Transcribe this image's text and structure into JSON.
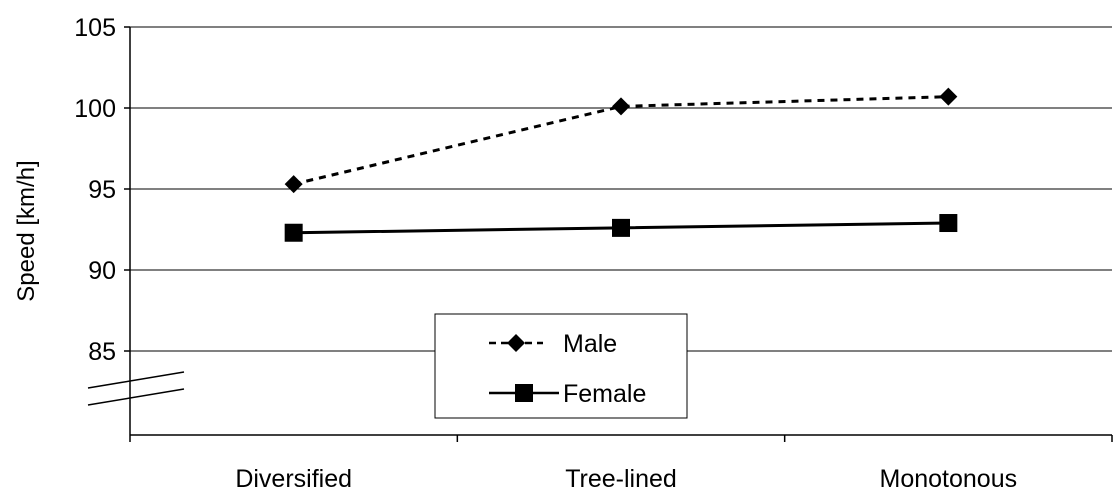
{
  "chart_data": {
    "type": "line",
    "categories": [
      "Diversified",
      "Tree-lined",
      "Monotonous"
    ],
    "series": [
      {
        "name": "Male",
        "values": [
          95.3,
          100.1,
          100.7
        ],
        "line_style": "dashed",
        "marker": "diamond",
        "color": "#000000"
      },
      {
        "name": "Female",
        "values": [
          92.3,
          92.6,
          92.9
        ],
        "line_style": "solid",
        "marker": "square",
        "color": "#000000"
      }
    ],
    "ylabel": "Speed [km/h]",
    "xlabel": "",
    "ylim": [
      80,
      105
    ],
    "yticks": [
      "85",
      "90",
      "95",
      "100",
      "105"
    ],
    "grid": "horizontal",
    "axis_break": true,
    "legend_position": "bottom-center"
  }
}
